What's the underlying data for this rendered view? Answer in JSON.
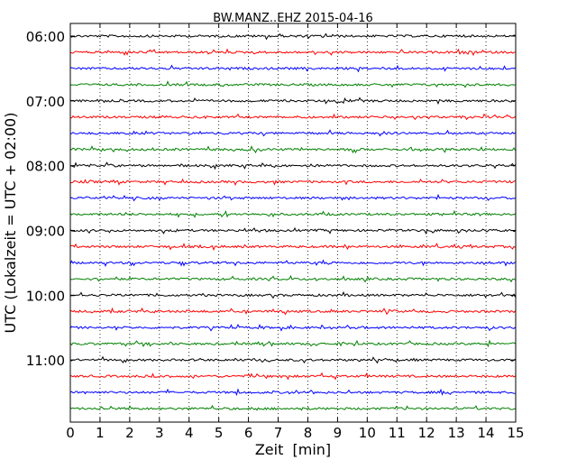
{
  "chart_data": {
    "type": "line",
    "title": "BW.MANZ..EHZ 2015-04-16",
    "xlabel": "Zeit  [min]",
    "ylabel": "UTC (Lokalzeit = UTC + 02:00)",
    "xlim": [
      0,
      15
    ],
    "x_ticks": [
      "0",
      "1",
      "2",
      "3",
      "4",
      "5",
      "6",
      "7",
      "8",
      "9",
      "10",
      "11",
      "12",
      "13",
      "14",
      "15"
    ],
    "y_tick_labels": [
      "06:00",
      "07:00",
      "08:00",
      "09:00",
      "10:00",
      "11:00"
    ],
    "trace_start_times": [
      "06:00",
      "06:15",
      "06:30",
      "06:45",
      "07:00",
      "07:15",
      "07:30",
      "07:45",
      "08:00",
      "08:15",
      "08:30",
      "08:45",
      "09:00",
      "09:15",
      "09:30",
      "09:45",
      "10:00",
      "10:15",
      "10:30",
      "10:45",
      "11:00",
      "11:15",
      "11:30",
      "11:45"
    ],
    "trace_colors": [
      "#000000",
      "#ff0000",
      "#0000ff",
      "#008000"
    ],
    "grid": "vertical dotted"
  }
}
